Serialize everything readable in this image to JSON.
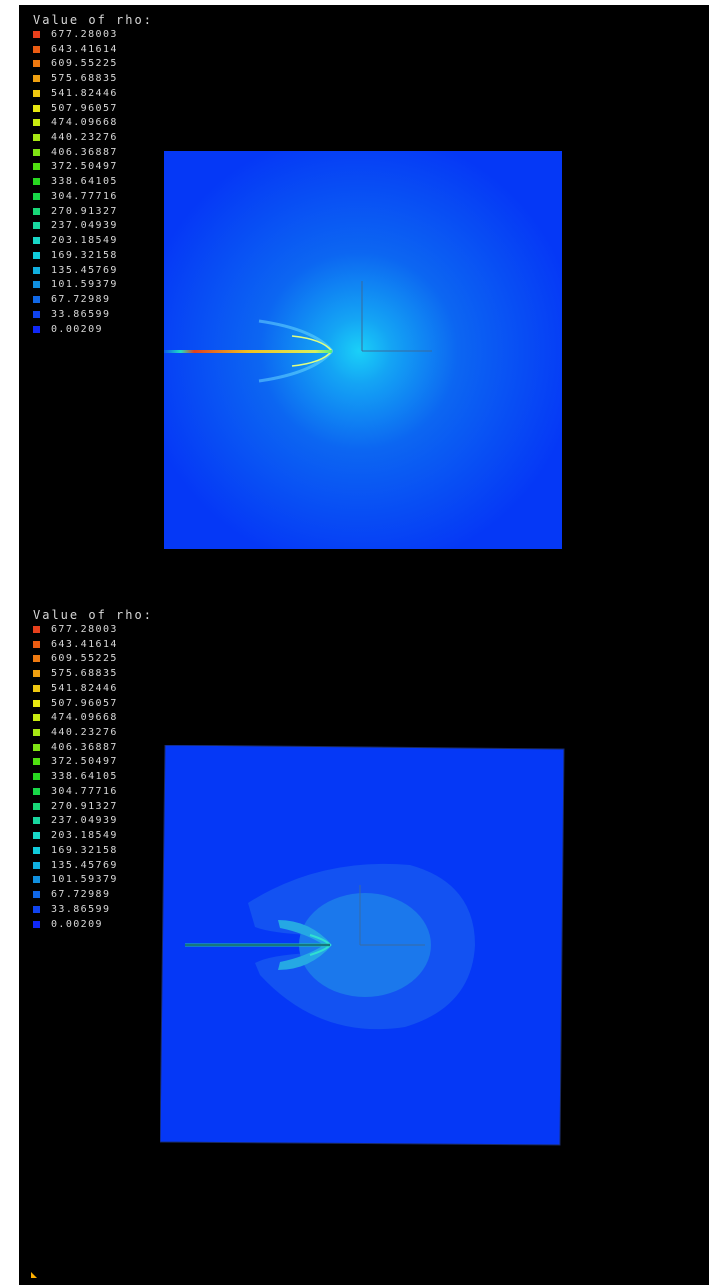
{
  "legend": {
    "title": "Value of rho:",
    "entries": [
      {
        "value": "677.28003",
        "color": "#e8401c"
      },
      {
        "value": "643.41614",
        "color": "#ec5c12"
      },
      {
        "value": "609.55225",
        "color": "#f07a10"
      },
      {
        "value": "575.68835",
        "color": "#f0a010"
      },
      {
        "value": "541.82446",
        "color": "#f0c810"
      },
      {
        "value": "507.96057",
        "color": "#e8e810"
      },
      {
        "value": "474.09668",
        "color": "#c8ec10"
      },
      {
        "value": "440.23276",
        "color": "#a8e814"
      },
      {
        "value": "406.36887",
        "color": "#80e414"
      },
      {
        "value": "372.50497",
        "color": "#50e010"
      },
      {
        "value": "338.64105",
        "color": "#28d820"
      },
      {
        "value": "304.77716",
        "color": "#18d848"
      },
      {
        "value": "270.91327",
        "color": "#18d878"
      },
      {
        "value": "237.04939",
        "color": "#18d8a0"
      },
      {
        "value": "203.18549",
        "color": "#18d8c8"
      },
      {
        "value": "169.32158",
        "color": "#10ccdc"
      },
      {
        "value": "135.45769",
        "color": "#10b0e0"
      },
      {
        "value": "101.59379",
        "color": "#1090e0"
      },
      {
        "value": "67.72989",
        "color": "#1068e8"
      },
      {
        "value": "33.86599",
        "color": "#1044f0"
      },
      {
        "value": "0.00209",
        "color": "#1028f8"
      }
    ]
  },
  "colors": {
    "background": "#000000",
    "field_base": "#0538f6",
    "field_high": "#1ad0f8",
    "contour_outer": "#1352f2",
    "contour_inner": "#1b78ec"
  }
}
